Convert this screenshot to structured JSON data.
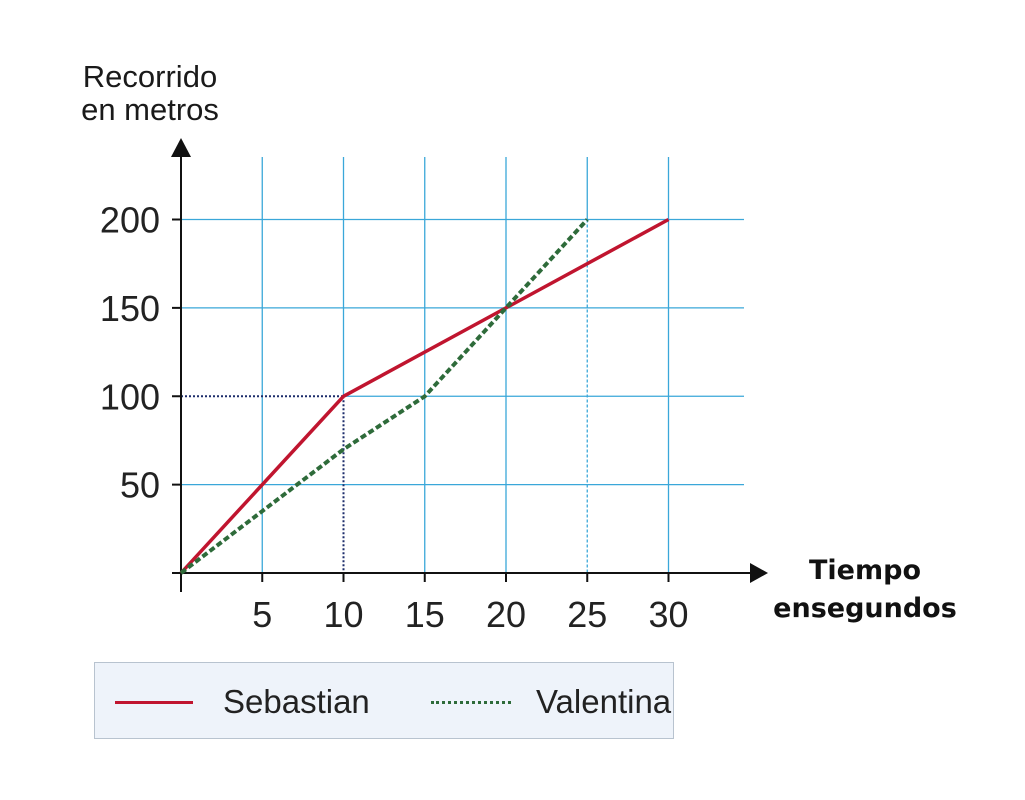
{
  "chart_data": {
    "type": "line",
    "ylabel_line1": "Recorrido",
    "ylabel_line2": "en metros",
    "xlabel_line1": "Tiempo",
    "xlabel_line2": "ensegundos",
    "xticks": [
      5,
      10,
      15,
      20,
      25,
      30
    ],
    "yticks": [
      50,
      100,
      150,
      200
    ],
    "xlim": [
      0,
      35
    ],
    "ylim": [
      0,
      237
    ],
    "grid": true,
    "legend_position": "bottom",
    "series": [
      {
        "name": "Sebastian",
        "color": "#c0152f",
        "style": "solid",
        "x": [
          0,
          10,
          20,
          30
        ],
        "y": [
          0,
          100,
          150,
          200
        ]
      },
      {
        "name": "Valentina",
        "color": "#2e6b3a",
        "style": "dashed",
        "x": [
          0,
          10,
          15,
          20,
          25
        ],
        "y": [
          0,
          70,
          100,
          150,
          200
        ]
      }
    ],
    "reference_point": {
      "x": 10,
      "y": 100
    },
    "reference_x": 25,
    "colors": {
      "grid": "#3aa7d9",
      "axis": "#111111",
      "guide": "#1d2d6b"
    }
  }
}
